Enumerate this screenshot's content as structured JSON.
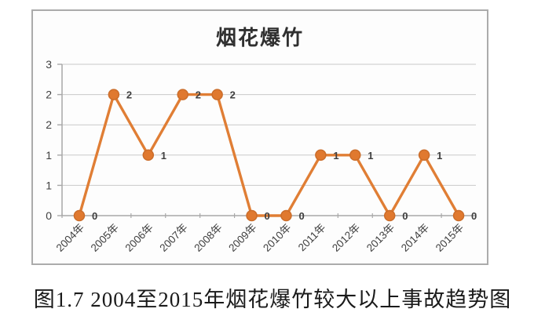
{
  "figure": {
    "caption": "图1.7 2004至2015年烟花爆竹较大以上事故趋势图"
  },
  "chart_data": {
    "type": "line",
    "title": "烟花爆竹",
    "categories": [
      "2004年",
      "2005年",
      "2006年",
      "2007年",
      "2008年",
      "2009年",
      "2010年",
      "2011年",
      "2012年",
      "2013年",
      "2014年",
      "2015年"
    ],
    "values": [
      0,
      2,
      1,
      2,
      2,
      0,
      0,
      1,
      1,
      0,
      1,
      0
    ],
    "point_labels": [
      "0",
      "2",
      "1",
      "2",
      "2",
      "0",
      "0",
      "1",
      "1",
      "0",
      "1",
      "0"
    ],
    "xlabel": "",
    "ylabel": "",
    "ylim": [
      0,
      2.5
    ],
    "y_gridlines": [
      0,
      0.5,
      1,
      1.5,
      2,
      2.5
    ],
    "y_tick_labels": [
      "0",
      "1",
      "1",
      "2",
      "2",
      "3"
    ],
    "grid": true,
    "legend": "none",
    "marker_style": "circle",
    "colors": {
      "line": "#E07E35",
      "marker_fill": "#E0792F",
      "marker_edge": "#CB6D2A",
      "grid_line": "#C9C9C9",
      "axis_line": "#A8A8A8",
      "label_text": "#3F3F3F",
      "title_text": "#303030",
      "frame_border": "#ABABAB",
      "frame_background": "#FDFDFD",
      "caption_text": "#1A1A1A"
    }
  }
}
